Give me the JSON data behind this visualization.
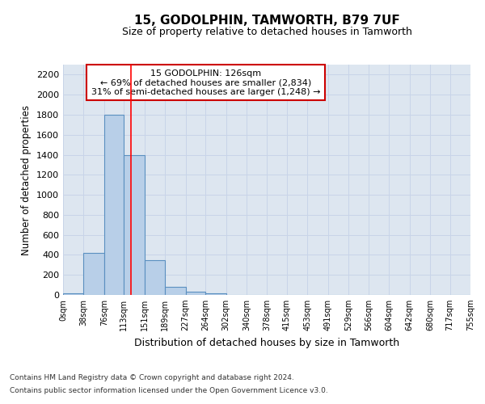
{
  "title": "15, GODOLPHIN, TAMWORTH, B79 7UF",
  "subtitle": "Size of property relative to detached houses in Tamworth",
  "xlabel": "Distribution of detached houses by size in Tamworth",
  "ylabel": "Number of detached properties",
  "footnote1": "Contains HM Land Registry data © Crown copyright and database right 2024.",
  "footnote2": "Contains public sector information licensed under the Open Government Licence v3.0.",
  "annotation_line1": "15 GODOLPHIN: 126sqm",
  "annotation_line2": "← 69% of detached houses are smaller (2,834)",
  "annotation_line3": "31% of semi-detached houses are larger (1,248) →",
  "bin_edges": [
    0,
    38,
    76,
    113,
    151,
    189,
    227,
    264,
    302,
    340,
    378,
    415,
    453,
    491,
    529,
    566,
    604,
    642,
    680,
    717,
    755
  ],
  "bar_heights": [
    15,
    420,
    1800,
    1400,
    350,
    80,
    30,
    15,
    0,
    0,
    0,
    0,
    0,
    0,
    0,
    0,
    0,
    0,
    0,
    0
  ],
  "bar_color": "#b8cfe8",
  "bar_edgecolor": "#5a8fc0",
  "grid_color": "#c8d4e8",
  "background_color": "#dde6f0",
  "red_line_x": 126,
  "ylim": [
    0,
    2300
  ],
  "yticks": [
    0,
    200,
    400,
    600,
    800,
    1000,
    1200,
    1400,
    1600,
    1800,
    2000,
    2200
  ],
  "annotation_box_color": "#ffffff",
  "annotation_box_edgecolor": "#cc0000",
  "annotation_text_color": "#000000"
}
